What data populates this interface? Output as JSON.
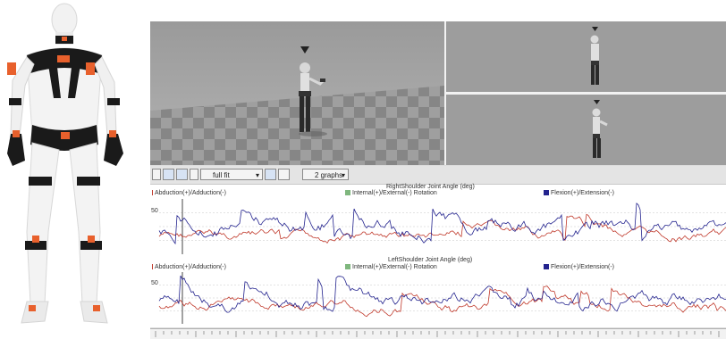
{
  "toolbar": {
    "zoom_select": "full fit",
    "graphs_select": "2 graphs"
  },
  "graphs": [
    {
      "title": "RightShoulder Joint Angle (deg)",
      "legend": [
        {
          "label": "Abduction(+)/Adduction(-)",
          "color": "#c0392b"
        },
        {
          "label": "Internal(+)/External(-) Rotation",
          "color": "#7fb77e"
        },
        {
          "label": "Flexion(+)/Extension(-)",
          "color": "#23238e"
        }
      ],
      "y_tick": "50"
    },
    {
      "title": "LeftShoulder Joint Angle (deg)",
      "legend": [
        {
          "label": "Abduction(+)/Adduction(-)",
          "color": "#c0392b"
        },
        {
          "label": "Internal(+)/External(-) Rotation",
          "color": "#7fb77e"
        },
        {
          "label": "Flexion(+)/Extension(-)",
          "color": "#23238e"
        }
      ],
      "y_tick": "50"
    }
  ],
  "colors": {
    "suit_black": "#1a1a1a",
    "suit_orange": "#e8602c",
    "viewport_gray": "#9b9b9b",
    "series_red": "#c0392b",
    "series_blue": "#23238e"
  }
}
